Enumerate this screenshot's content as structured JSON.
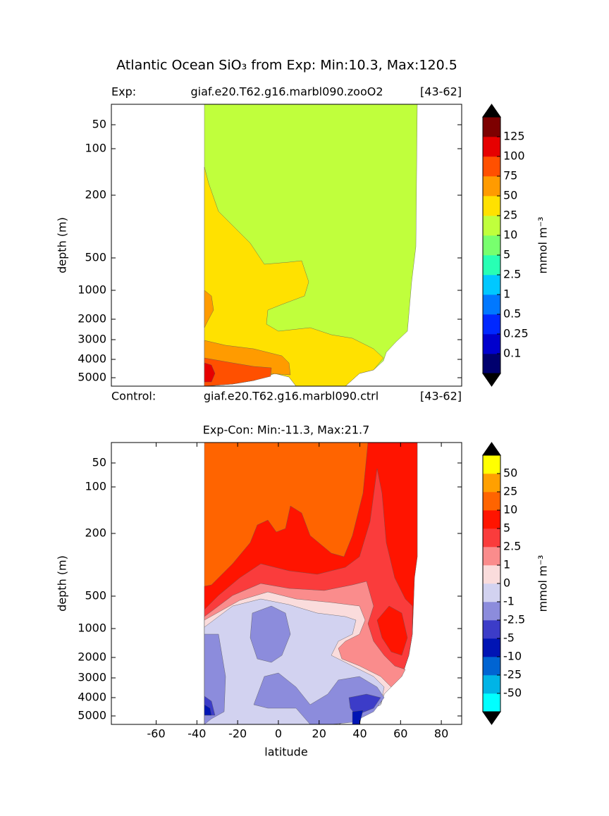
{
  "title": "Atlantic Ocean SiO₃ from Exp: Min:10.3, Max:120.5",
  "chart_data": [
    {
      "type": "contour",
      "header": {
        "left": "Exp:",
        "center": "giaf.e20.T62.g16.marbl090.zooO2",
        "right": "[43-62]"
      },
      "footer": {
        "left": "Control:",
        "center": "giaf.e20.T62.g16.marbl090.ctrl",
        "right": "[43-62]"
      },
      "ylabel": "depth (m)",
      "xlim": [
        -82,
        90
      ],
      "ylim": [
        0,
        5500
      ],
      "yticks": [
        50,
        100,
        200,
        500,
        1000,
        2000,
        3000,
        4000,
        5000
      ],
      "colorbar": {
        "label": "mmol m⁻³",
        "levels": [
          0.1,
          0.25,
          0.5,
          1,
          2.5,
          5,
          10,
          25,
          50,
          75,
          100,
          125
        ],
        "colors": [
          "#00006e",
          "#0000cd",
          "#0028ff",
          "#0078ff",
          "#00c8ff",
          "#28ffb4",
          "#78ff6e",
          "#c0ff3c",
          "#ffe100",
          "#ff9b00",
          "#ff5000",
          "#e60000",
          "#7d0000"
        ],
        "extend_color": "#000000"
      }
    },
    {
      "type": "contour",
      "title": "Exp-Con: Min:-11.3, Max:21.7",
      "ylabel": "depth (m)",
      "xlabel": "latitude",
      "xlim": [
        -82,
        90
      ],
      "xticks": [
        -60,
        -40,
        -20,
        0,
        20,
        40,
        60,
        80
      ],
      "ylim": [
        0,
        5500
      ],
      "yticks": [
        50,
        100,
        200,
        500,
        1000,
        2000,
        3000,
        4000,
        5000
      ],
      "colorbar": {
        "label": "mmol m⁻³",
        "levels": [
          -50,
          -25,
          -10,
          -5,
          -2.5,
          -1,
          0,
          1,
          2.5,
          5,
          10,
          25,
          50
        ],
        "colors": [
          "#00ffff",
          "#00b4e6",
          "#0064d2",
          "#0014b4",
          "#3c3cc8",
          "#8c8cdc",
          "#d2d2f0",
          "#fadcdc",
          "#fa8c8c",
          "#fa3c3c",
          "#ff1400",
          "#ff6400",
          "#ffa000",
          "#ffff00"
        ],
        "extend_color": "#000000"
      }
    }
  ]
}
